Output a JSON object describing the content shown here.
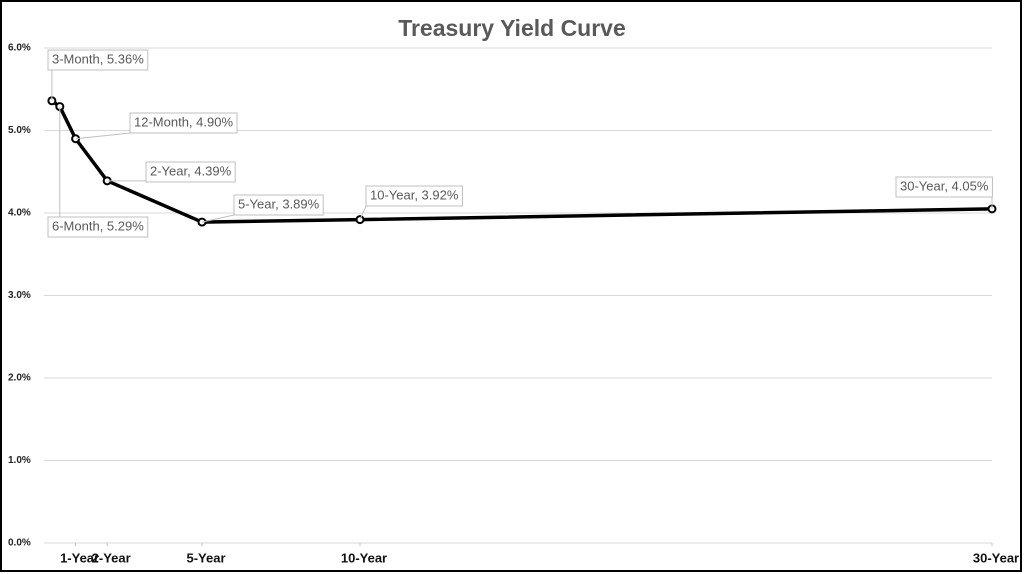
{
  "chart_data": {
    "type": "line",
    "title": "Treasury Yield Curve",
    "x": [
      0.25,
      0.5,
      1,
      2,
      5,
      10,
      30
    ],
    "values": [
      5.36,
      5.29,
      4.9,
      4.39,
      3.89,
      3.92,
      4.05
    ],
    "value_labels": [
      "3-Month, 5.36%",
      "6-Month, 5.29%",
      "12-Month, 4.90%",
      "2-Year, 4.39%",
      "5-Year, 3.89%",
      "10-Year, 3.92%",
      "30-Year, 4.05%"
    ],
    "color": "#000000",
    "xlim": [
      0,
      30
    ],
    "xticks": [
      {
        "value": 1,
        "label": "1-Year"
      },
      {
        "value": 2,
        "label": "2-Year"
      },
      {
        "value": 5,
        "label": "5-Year"
      },
      {
        "value": 10,
        "label": "10-Year"
      },
      {
        "value": 30,
        "label": "30-Year"
      }
    ],
    "ylim": [
      0,
      6
    ],
    "yticks": [
      {
        "value": 0,
        "label": "0.0%"
      },
      {
        "value": 1,
        "label": "1.0%"
      },
      {
        "value": 2,
        "label": "2.0%"
      },
      {
        "value": 3,
        "label": "3.0%"
      },
      {
        "value": 4,
        "label": "4.0%"
      },
      {
        "value": 5,
        "label": "5.0%"
      },
      {
        "value": 6,
        "label": "6.0%"
      }
    ],
    "grid": true
  }
}
